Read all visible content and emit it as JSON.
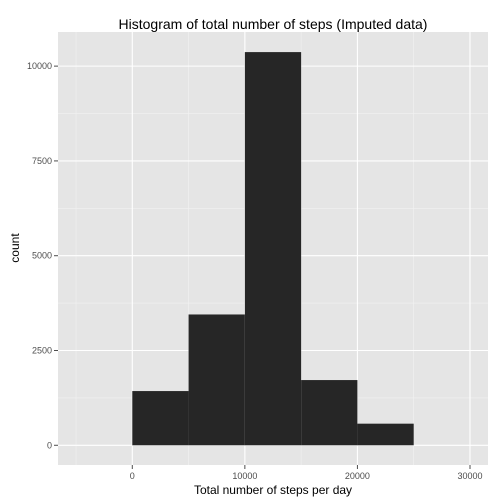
{
  "chart_data": {
    "type": "bar",
    "title": "Histogram of total number of steps (Imputed data)",
    "xlabel": "Total number of steps per day",
    "ylabel": "count",
    "bins": [
      {
        "x0": 0,
        "x1": 5000,
        "count": 1430
      },
      {
        "x0": 5000,
        "x1": 10000,
        "count": 3450
      },
      {
        "x0": 10000,
        "x1": 15000,
        "count": 10370
      },
      {
        "x0": 15000,
        "x1": 20000,
        "count": 1720
      },
      {
        "x0": 20000,
        "x1": 25000,
        "count": 570
      }
    ],
    "xlim": [
      -6600,
      31600
    ],
    "ylim": [
      -520,
      10900
    ],
    "x_ticks": [
      0,
      10000,
      20000,
      30000
    ],
    "y_ticks": [
      0,
      2500,
      5000,
      7500,
      10000
    ],
    "x_tick_labels": [
      "0",
      "10000",
      "20000",
      "30000"
    ],
    "y_tick_labels": [
      "0",
      "2500",
      "5000",
      "7500",
      "10000"
    ],
    "grid": true,
    "colors": {
      "panel": "#e5e5e5",
      "bar": "#262626",
      "grid_major": "#ffffff",
      "grid_minor": "#f2f2f2"
    }
  }
}
